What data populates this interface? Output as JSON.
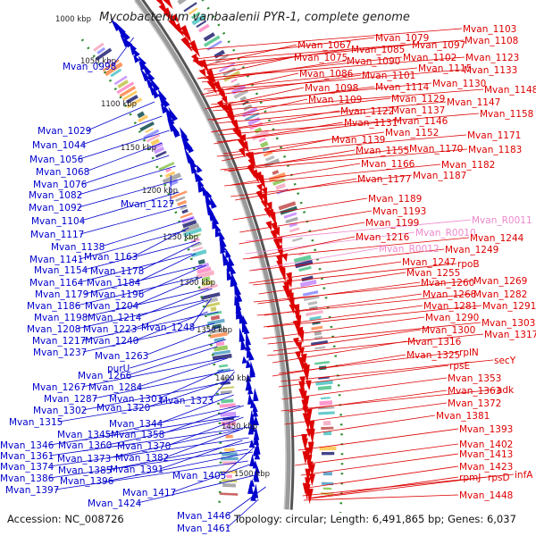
{
  "title": "Mycobacterium vanbaalenii PYR-1, complete genome",
  "footer": {
    "accession": "Accession: NC_008726",
    "topology": "Topology: circular; Length: 6,491,865 bp; Genes: 6,037"
  },
  "colors": {
    "forward_strand": "#dd0000",
    "reverse_strand": "#0000cc",
    "rna": "#ee88cc",
    "backbone": "#888888",
    "tick_dots": "#2e8b2e"
  },
  "scale": {
    "ticks": [
      "1000 kbp",
      "1050 kbp",
      "1100 kbp",
      "1150 kbp",
      "1200 kbp",
      "1250 kbp",
      "1300 kbp",
      "1350 kbp",
      "1400 kbp",
      "1450 kbp",
      "1500 kbp"
    ]
  },
  "left_labels": [
    "Mvan_0998",
    "Mvan_1029",
    "Mvan_1044",
    "Mvan_1056",
    "Mvan_1068",
    "Mvan_1076",
    "Mvan_1082",
    "Mvan_1092",
    "Mvan_1127",
    "Mvan_1104",
    "Mvan_1117",
    "Mvan_1138",
    "Mvan_1141",
    "Mvan_1163",
    "Mvan_1154",
    "Mvan_1178",
    "Mvan_1164",
    "Mvan_1184",
    "Mvan_1179",
    "Mvan_1196",
    "Mvan_1186",
    "Mvan_1204",
    "Mvan_1198",
    "Mvan_1214",
    "Mvan_1208",
    "Mvan_1223",
    "Mvan_1248",
    "Mvan_1217",
    "Mvan_1240",
    "Mvan_1237",
    "Mvan_1263",
    "purU",
    "Mvan_1266",
    "Mvan_1267",
    "Mvan_1284",
    "Mvan_1287",
    "Mvan_1301",
    "Mvan_1302",
    "Mvan_1320",
    "Mvan_1323",
    "Mvan_1315",
    "Mvan_1344",
    "Mvan_1345",
    "Mvan_1358",
    "Mvan_1346",
    "Mvan_1360",
    "Mvan_1370",
    "Mvan_1361",
    "Mvan_1373",
    "Mvan_1382",
    "Mvan_1374",
    "Mvan_1385",
    "Mvan_1391",
    "Mvan_1386",
    "Mvan_1396",
    "Mvan_1405",
    "Mvan_1397",
    "Mvan_1417",
    "Mvan_1424",
    "Mvan_1446",
    "Mvan_1461"
  ],
  "right_labels": [
    "Mvan_1103",
    "Mvan_1079",
    "Mvan_1067",
    "Mvan_1108",
    "Mvan_1085",
    "Mvan_1097",
    "Mvan_1075",
    "Mvan_1090",
    "Mvan_1102",
    "Mvan_1123",
    "Mvan_1115",
    "Mvan_1133",
    "Mvan_1086",
    "Mvan_1101",
    "Mvan_1130",
    "Mvan_1098",
    "Mvan_1114",
    "Mvan_1148",
    "Mvan_1129",
    "Mvan_1109",
    "Mvan_1147",
    "Mvan_1122",
    "Mvan_1137",
    "Mvan_1158",
    "Mvan_1131",
    "Mvan_1146",
    "Mvan_1152",
    "Mvan_1171",
    "Mvan_1139",
    "Mvan_1155",
    "Mvan_1170",
    "Mvan_1183",
    "Mvan_1166",
    "Mvan_1182",
    "Mvan_1187",
    "Mvan_1177",
    "Mvan_1189",
    "Mvan_1193",
    "Mvan_R0011",
    "Mvan_1199",
    "Mvan_R0010",
    "Mvan_1216",
    "Mvan_1244",
    "Mvan_1249",
    "Mvan_R0012",
    "Mvan_1247",
    "rpoB",
    "Mvan_1255",
    "Mvan_1269",
    "Mvan_1260",
    "Mvan_1268",
    "Mvan_1282",
    "Mvan_1281",
    "Mvan_1291",
    "Mvan_1290",
    "Mvan_1303",
    "Mvan_1300",
    "Mvan_1317",
    "Mvan_1316",
    "rplN",
    "Mvan_1325",
    "rpsE",
    "secY",
    "adk",
    "Mvan_1353",
    "Mvan_1363",
    "Mvan_1372",
    "Mvan_1381",
    "Mvan_1393",
    "Mvan_1402",
    "Mvan_1413",
    "Mvan_1423",
    "infA",
    "rpmJ",
    "rpsD",
    "Mvan_1448"
  ]
}
